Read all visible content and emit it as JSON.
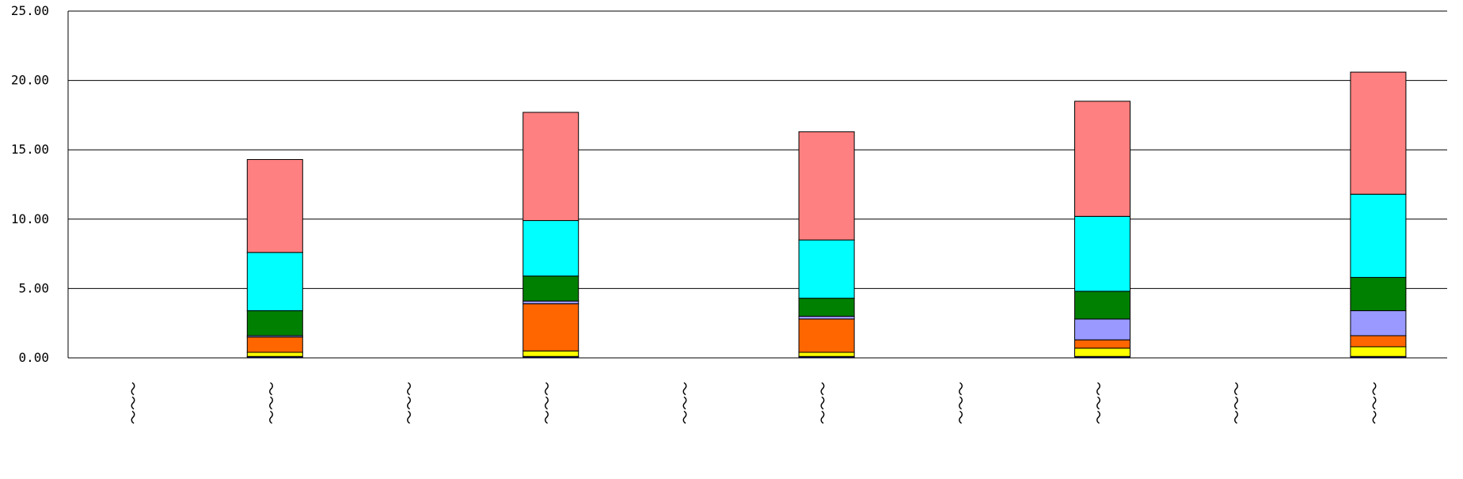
{
  "chart_data": {
    "type": "bar",
    "stacked": true,
    "grid": true,
    "ylim": [
      0,
      25
    ],
    "y_ticks": [
      "0.00",
      "5.00",
      "10.00",
      "15.00",
      "20.00",
      "25.00"
    ],
    "categories": [
      "〜〜〜",
      "〜〜〜",
      "〜〜〜",
      "〜〜〜",
      "〜〜〜",
      "〜〜〜",
      "〜〜〜",
      "〜〜〜",
      "〜〜〜",
      "〜〜〜"
    ],
    "series": [
      {
        "color": "#000080",
        "values": [
          0,
          0.1,
          0,
          0.1,
          0,
          0.1,
          0,
          0.1,
          0,
          0.1
        ]
      },
      {
        "color": "#FFFF00",
        "values": [
          0,
          0.3,
          0,
          0.4,
          0,
          0.3,
          0,
          0.6,
          0,
          0.7
        ]
      },
      {
        "color": "#FF6600",
        "values": [
          0,
          1.1,
          0,
          3.4,
          0,
          2.4,
          0,
          0.6,
          0,
          0.8
        ]
      },
      {
        "color": "#9999FF",
        "values": [
          0,
          0.1,
          0,
          0.2,
          0,
          0.2,
          0,
          1.5,
          0,
          1.8
        ]
      },
      {
        "color": "#008000",
        "values": [
          0,
          1.8,
          0,
          1.8,
          0,
          1.3,
          0,
          2.0,
          0,
          2.4
        ]
      },
      {
        "color": "#00FFFF",
        "values": [
          0,
          4.2,
          0,
          4.0,
          0,
          4.2,
          0,
          5.4,
          0,
          6.0
        ]
      },
      {
        "color": "#FF8080",
        "values": [
          0,
          6.7,
          0,
          7.8,
          0,
          7.8,
          0,
          8.3,
          0,
          8.8
        ]
      }
    ]
  }
}
